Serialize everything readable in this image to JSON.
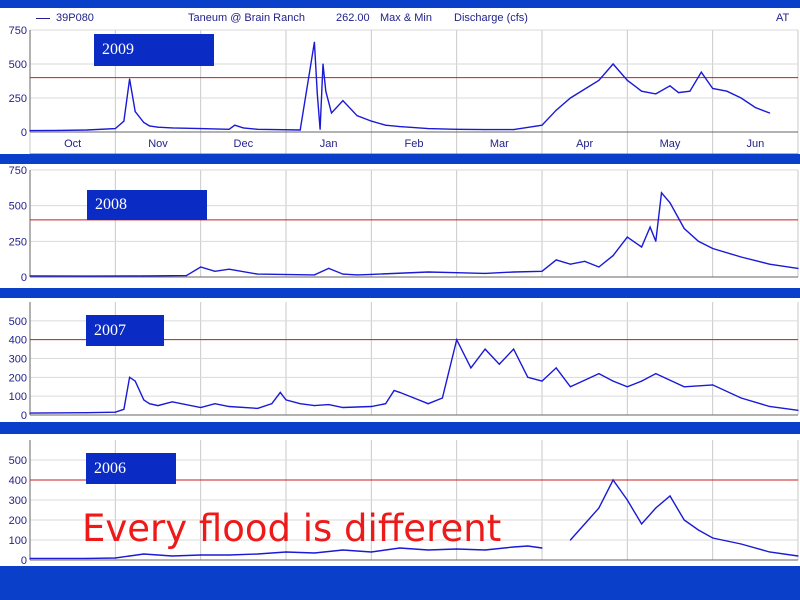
{
  "header": {
    "series_id": "39P080",
    "station": "Taneum @ Brain Ranch",
    "value": "262.00",
    "stat": "Max & Min",
    "param": "Discharge (cfs)",
    "code": "AT"
  },
  "caption": "Every flood is different",
  "colors": {
    "line": "#1a1ad6",
    "threshold": "#c81e1e",
    "badge": "#0b2cc4",
    "caption": "#ee1a1a",
    "background": "#0a3fc9"
  },
  "chart_data": [
    {
      "type": "line",
      "label": "2009",
      "xlabels": [
        "Oct",
        "Nov",
        "Dec",
        "Jan",
        "Feb",
        "Mar",
        "Apr",
        "May",
        "Jun"
      ],
      "yticks": [
        0,
        250,
        500,
        750
      ],
      "ylim": [
        0,
        750
      ],
      "xlim": [
        0,
        270
      ],
      "threshold": 400,
      "series": [
        {
          "x": [
            0,
            10,
            20,
            30,
            33,
            35,
            37,
            40,
            42,
            45,
            50,
            60,
            70,
            72,
            75,
            80,
            95,
            100,
            101,
            102,
            103,
            104,
            106,
            110,
            115,
            120,
            125,
            130,
            140,
            150,
            160,
            170,
            180,
            185,
            190,
            200,
            205,
            210,
            215,
            220,
            225,
            228,
            232,
            236,
            240,
            245,
            250,
            255,
            260
          ],
          "y": [
            10,
            12,
            15,
            25,
            80,
            390,
            150,
            70,
            45,
            35,
            30,
            25,
            20,
            50,
            30,
            20,
            15,
            660,
            280,
            20,
            500,
            300,
            140,
            230,
            120,
            80,
            50,
            40,
            25,
            20,
            18,
            18,
            50,
            160,
            250,
            380,
            500,
            380,
            300,
            280,
            340,
            290,
            300,
            440,
            320,
            300,
            250,
            180,
            140
          ]
        }
      ]
    },
    {
      "type": "line",
      "label": "2008",
      "yticks": [
        0,
        250,
        500,
        750
      ],
      "ylim": [
        0,
        750
      ],
      "xlim": [
        0,
        270
      ],
      "threshold": 400,
      "series": [
        {
          "x": [
            0,
            20,
            40,
            55,
            60,
            65,
            70,
            80,
            100,
            105,
            110,
            115,
            120,
            140,
            150,
            160,
            170,
            180,
            185,
            190,
            195,
            200,
            205,
            210,
            215,
            218,
            220,
            222,
            225,
            230,
            235,
            240,
            250,
            260,
            270
          ],
          "y": [
            8,
            6,
            8,
            10,
            70,
            40,
            55,
            20,
            15,
            60,
            20,
            15,
            18,
            35,
            30,
            25,
            35,
            40,
            120,
            90,
            110,
            70,
            150,
            280,
            210,
            350,
            250,
            590,
            520,
            340,
            250,
            200,
            140,
            90,
            60
          ]
        }
      ]
    },
    {
      "type": "line",
      "label": "2007",
      "yticks": [
        0,
        100,
        200,
        300,
        400,
        500
      ],
      "ylim": [
        0,
        600
      ],
      "xlim": [
        0,
        270
      ],
      "threshold": 400,
      "series": [
        {
          "x": [
            0,
            20,
            30,
            33,
            35,
            37,
            40,
            42,
            45,
            50,
            60,
            65,
            70,
            80,
            85,
            88,
            90,
            95,
            100,
            105,
            110,
            120,
            125,
            128,
            130,
            135,
            140,
            145,
            150,
            155,
            160,
            165,
            170,
            175,
            180,
            185,
            190,
            200,
            205,
            210,
            215,
            220,
            230,
            240,
            250,
            260,
            270
          ],
          "y": [
            10,
            12,
            15,
            30,
            200,
            180,
            80,
            60,
            50,
            70,
            40,
            60,
            45,
            35,
            60,
            120,
            80,
            60,
            50,
            55,
            40,
            45,
            60,
            130,
            120,
            90,
            60,
            90,
            400,
            250,
            350,
            270,
            350,
            200,
            180,
            250,
            150,
            220,
            180,
            150,
            180,
            220,
            150,
            160,
            90,
            45,
            25
          ]
        }
      ]
    },
    {
      "type": "line",
      "label": "2006",
      "yticks": [
        0,
        100,
        200,
        300,
        400,
        500
      ],
      "ylim": [
        0,
        600
      ],
      "xlim": [
        0,
        270
      ],
      "threshold": 400,
      "series": [
        {
          "x": [
            0,
            20,
            30,
            35,
            40,
            50,
            60,
            70,
            80,
            90,
            100,
            110,
            120,
            130,
            140,
            150,
            160,
            170,
            175,
            180
          ],
          "y": [
            8,
            8,
            10,
            20,
            30,
            20,
            25,
            25,
            30,
            40,
            35,
            50,
            40,
            60,
            50,
            55,
            50,
            65,
            70,
            60
          ]
        },
        {
          "x": [
            190,
            195,
            200,
            205,
            210,
            215,
            220,
            225,
            230,
            235,
            240,
            250,
            260,
            270
          ],
          "y": [
            100,
            180,
            260,
            400,
            300,
            180,
            260,
            320,
            200,
            150,
            110,
            80,
            40,
            20
          ]
        }
      ]
    }
  ]
}
